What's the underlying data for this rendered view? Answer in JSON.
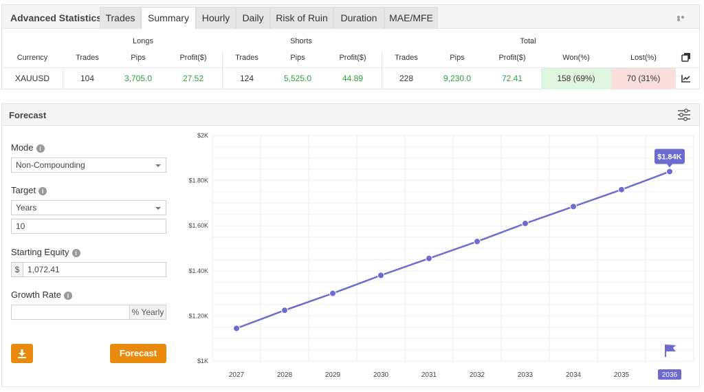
{
  "stats": {
    "title": "Advanced Statistics",
    "tabs": [
      "Trades",
      "Summary",
      "Hourly",
      "Daily",
      "Risk of Ruin",
      "Duration",
      "MAE/MFE"
    ],
    "active_tab": "Summary",
    "group_headers": {
      "longs": "Longs",
      "shorts": "Shorts",
      "total": "Total"
    },
    "columns": [
      "Currency",
      "Trades",
      "Pips",
      "Profit($)",
      "Trades",
      "Pips",
      "Profit($)",
      "Trades",
      "Pips",
      "Profit($)",
      "Won(%)",
      "Lost(%)"
    ],
    "row": {
      "currency": "XAUUSD",
      "long_trades": "104",
      "long_pips": "3,705.0",
      "long_profit": "27.52",
      "short_trades": "124",
      "short_pips": "5,525.0",
      "short_profit": "44.89",
      "total_trades": "228",
      "total_pips": "9,230.0",
      "total_profit": "72.41",
      "won": "158 (69%)",
      "lost": "70 (31%)"
    }
  },
  "forecast": {
    "title": "Forecast",
    "mode_label": "Mode",
    "mode_value": "Non-Compounding",
    "target_label": "Target",
    "target_value": "Years",
    "target_count": "10",
    "equity_label": "Starting Equity",
    "equity_currency": "$",
    "equity_value": "1,072.41",
    "growth_label": "Growth Rate",
    "growth_value": "",
    "growth_unit": "% Yearly",
    "forecast_button": "Forecast",
    "info_glyph": "i"
  },
  "colors": {
    "accent_orange": "#ea8a0c",
    "line": "#6c6cd0",
    "profit_green": "#2e9e3e",
    "won_bg": "#dff5df",
    "lost_bg": "#f9dede"
  },
  "chart_data": {
    "type": "line",
    "x": [
      "2027",
      "2028",
      "2029",
      "2030",
      "2031",
      "2032",
      "2033",
      "2034",
      "2035",
      "2036"
    ],
    "values": [
      1145,
      1225,
      1300,
      1380,
      1455,
      1530,
      1610,
      1685,
      1760,
      1840
    ],
    "ylim": [
      1000,
      2000
    ],
    "yticks": [
      1000,
      1200,
      1400,
      1600,
      1800,
      2000
    ],
    "ytick_labels": [
      "$1K",
      "$1.20K",
      "$1.40K",
      "$1.60K",
      "$1.80K",
      "$2K"
    ],
    "last_label": "$1.84K",
    "highlight_x": "2036",
    "grid": true,
    "title": "",
    "xlabel": "",
    "ylabel": ""
  }
}
